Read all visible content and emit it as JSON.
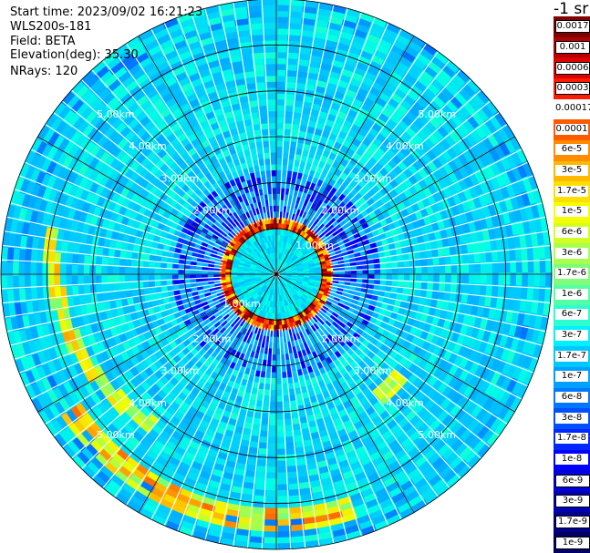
{
  "info": {
    "start_time": "Start time: 2023/09/02 16:21:23",
    "instrument": "WLS200s-181",
    "field": "Field: BETA",
    "elevation": "Elevation(deg): 35.30",
    "nrays": "NRays: 120"
  },
  "colorbar": {
    "unit": "-1 sr",
    "labels": [
      "0.0017",
      "0.001",
      "0.0006",
      "0.0003",
      "0.00017",
      "0.0001",
      "6e-5",
      "3e-5",
      "1.7e-5",
      "1e-5",
      "6e-6",
      "3e-6",
      "1.7e-6",
      "1e-6",
      "6e-7",
      "3e-7",
      "1.7e-7",
      "1e-7",
      "6e-8",
      "3e-8",
      "1.7e-8",
      "1e-8",
      "6e-9",
      "3e-9",
      "1.7e-9",
      "1e-9"
    ],
    "colors": [
      "#7f0000",
      "#b20000",
      "#dd0000",
      "#ff1a00",
      "#ffffff",
      "#ff5a00",
      "#ff8c00",
      "#ffb800",
      "#ffdf00",
      "#f4ff00",
      "#d2ff24",
      "#a8ff4e",
      "#7dff7a",
      "#55ffa6",
      "#2cffd0",
      "#00f0ff",
      "#00c8ff",
      "#00a0ff",
      "#0078ff",
      "#0050ff",
      "#0028ff",
      "#0000ff",
      "#0000dc",
      "#0000b4",
      "#00008c",
      "#000064"
    ]
  },
  "chart_data": {
    "type": "heatmap",
    "projection": "polar-ppi",
    "field": "BETA",
    "n_rays": 120,
    "elevation_deg": 35.3,
    "range_rings": [
      {
        "label": "2.00km",
        "range_km": 2.0
      },
      {
        "label": "3.00km",
        "range_km": 3.0
      },
      {
        "label": "4.00km",
        "range_km": 4.0
      },
      {
        "label": "5.00km",
        "range_km": 5.0
      }
    ],
    "inner_ring_labels": [
      "1.00km",
      "1.00km"
    ],
    "max_range_km": 6.0,
    "features": [
      {
        "name": "near-field aerosol ring",
        "range_km": 1.0,
        "level": "0.001"
      },
      {
        "name": "southern arc",
        "range_km_min": 5.0,
        "range_km_max": 5.8,
        "azimuth_deg": [
          160,
          240
        ],
        "level": "1e-5"
      },
      {
        "name": "western arc",
        "range_km_min": 4.0,
        "range_km_max": 5.0,
        "azimuth_deg": [
          225,
          280
        ],
        "level": "1.7e-5"
      },
      {
        "name": "background",
        "level": "3e-7"
      }
    ]
  }
}
